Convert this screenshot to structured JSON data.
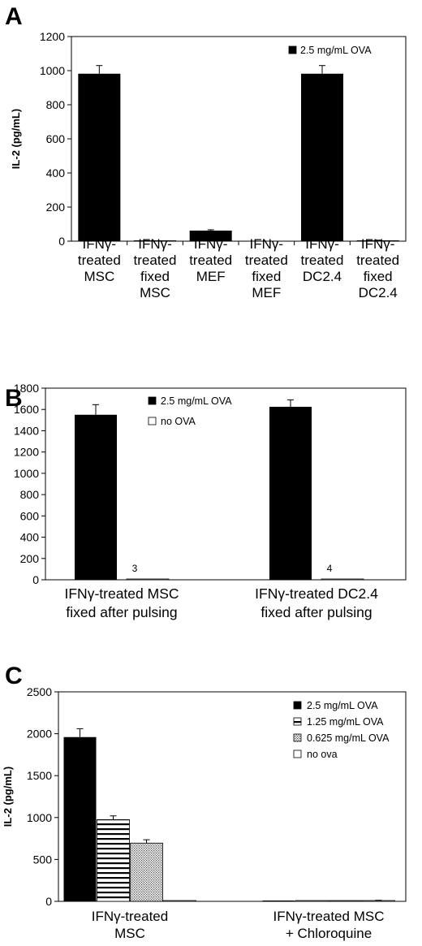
{
  "chart_data": [
    {
      "panel": "A",
      "type": "bar",
      "ylabel": "IL-2 (pg/mL)",
      "ylim": [
        0,
        1200
      ],
      "yticks": [
        0,
        200,
        400,
        600,
        800,
        1000,
        1200
      ],
      "categories": [
        [
          "IFNγ-",
          "treated",
          "MSC"
        ],
        [
          "IFNγ-",
          "treated",
          "fixed",
          "MSC"
        ],
        [
          "IFNγ-",
          "treated",
          "MEF"
        ],
        [
          "IFNγ-",
          "treated",
          "fixed",
          "MEF"
        ],
        [
          "IFNγ-",
          "treated",
          "DC2.4"
        ],
        [
          "IFNγ-",
          "treated",
          "fixed",
          "DC2.4"
        ]
      ],
      "series": [
        {
          "name": "2.5 mg/mL OVA",
          "fill": "solid",
          "values": [
            982,
            2,
            62,
            0,
            982,
            4
          ],
          "errors": [
            48,
            0,
            5,
            0,
            48,
            2
          ]
        }
      ],
      "legend": "top-right",
      "grid": false
    },
    {
      "panel": "B",
      "type": "bar",
      "ylabel": "",
      "ylim": [
        0,
        1800
      ],
      "yticks": [
        0,
        200,
        400,
        600,
        800,
        1000,
        1200,
        1400,
        1600,
        1800
      ],
      "categories": [
        [
          "IFNγ-treated MSC",
          "fixed after pulsing"
        ],
        [
          "IFNγ-treated DC2.4",
          "fixed after pulsing"
        ]
      ],
      "series": [
        {
          "name": "2.5 mg/mL OVA",
          "fill": "solid",
          "values": [
            1550,
            1625
          ],
          "errors": [
            95,
            65
          ]
        },
        {
          "name": "no OVA",
          "fill": "white",
          "values": [
            3,
            4
          ],
          "errors": [
            0,
            0
          ]
        }
      ],
      "annotations": [
        "3",
        "4"
      ],
      "legend": "top-center",
      "grid": false
    },
    {
      "panel": "C",
      "type": "bar",
      "ylabel": "IL-2 (pg/mL)",
      "ylim": [
        0,
        2500
      ],
      "yticks": [
        0,
        500,
        1000,
        1500,
        2000,
        2500
      ],
      "categories": [
        [
          "IFNγ-treated",
          "MSC"
        ],
        [
          "IFNγ-treated MSC",
          "+ Chloroquine"
        ]
      ],
      "series": [
        {
          "name": "2.5 mg/mL OVA",
          "fill": "solid",
          "values": [
            1960,
            5
          ],
          "errors": [
            100,
            0
          ]
        },
        {
          "name": "1.25 mg/mL OVA",
          "fill": "hstripes",
          "values": [
            975,
            3
          ],
          "errors": [
            45,
            0
          ]
        },
        {
          "name": "0.625 mg/mL OVA",
          "fill": "dots",
          "values": [
            695,
            2
          ],
          "errors": [
            40,
            0
          ]
        },
        {
          "name": "no ova",
          "fill": "white",
          "values": [
            2,
            8
          ],
          "errors": [
            0,
            5
          ]
        }
      ],
      "legend": "top-right",
      "grid": false
    }
  ]
}
